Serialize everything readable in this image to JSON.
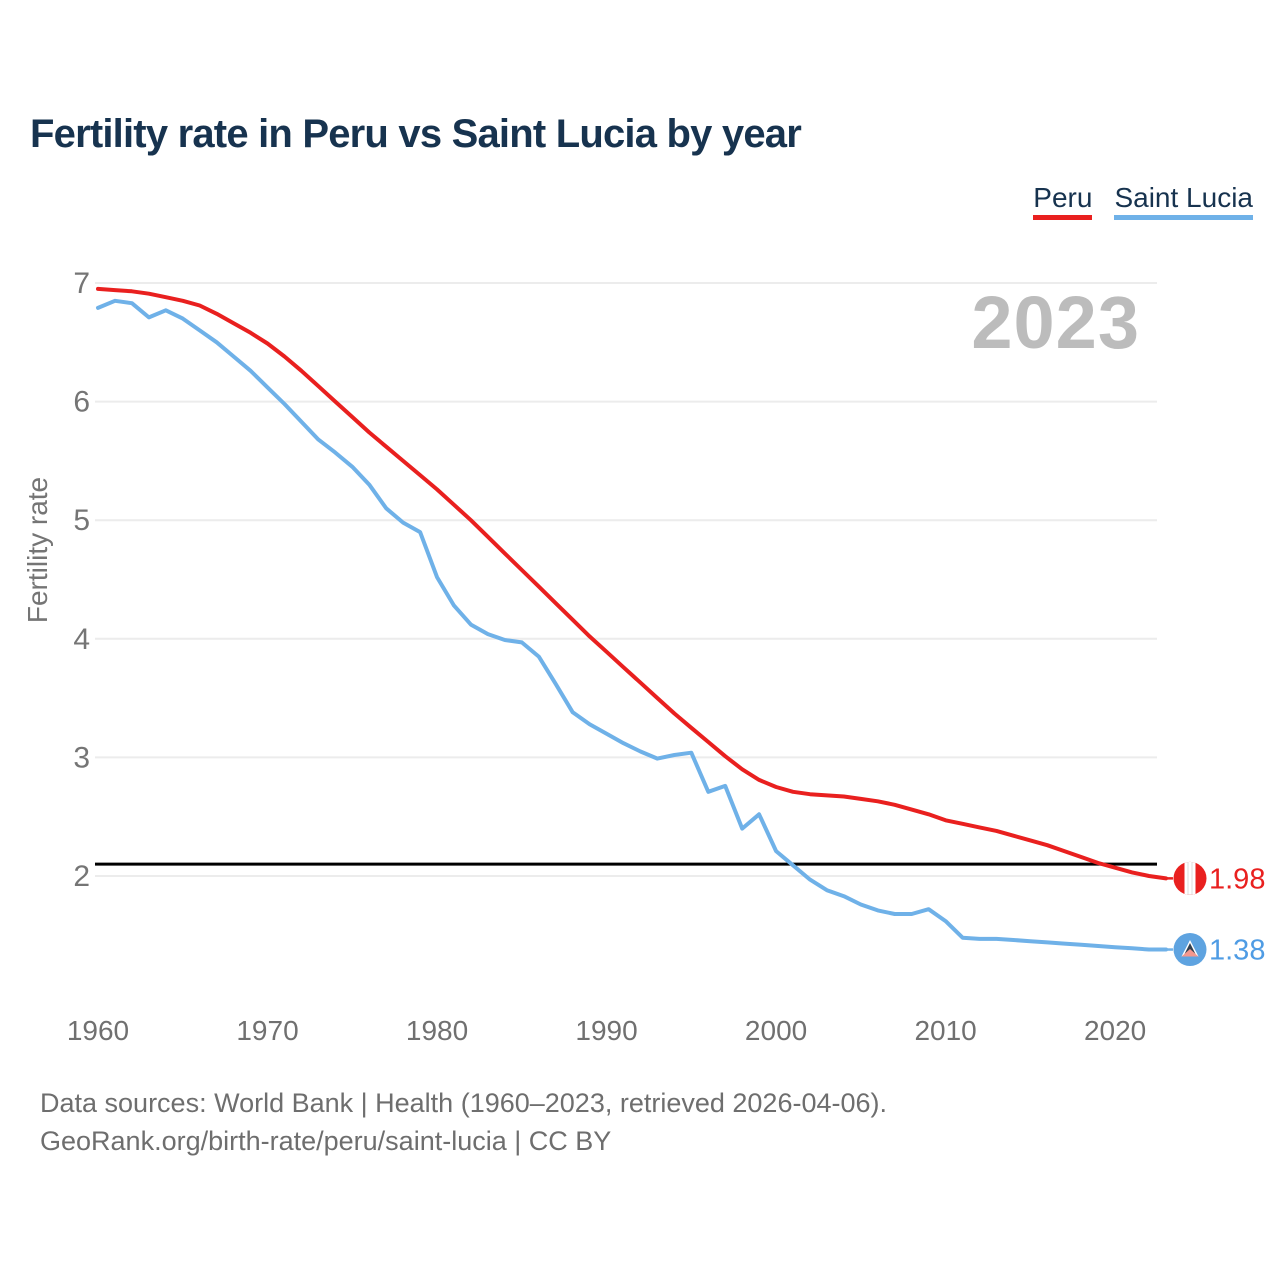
{
  "title": "Fertility rate in Peru vs Saint Lucia by year",
  "watermark": "2023",
  "legend": {
    "items": [
      {
        "label": "Peru",
        "color": "#e9201f"
      },
      {
        "label": "Saint Lucia",
        "color": "#6fb1e8"
      }
    ]
  },
  "y_axis": {
    "title": "Fertility rate",
    "ticks": [
      7,
      6,
      5,
      4,
      3,
      2
    ]
  },
  "x_axis": {
    "ticks": [
      1960,
      1970,
      1980,
      1990,
      2000,
      2010,
      2020
    ]
  },
  "reference_line": {
    "value": 2.1,
    "color": "#000000"
  },
  "end_labels": [
    {
      "series": "Peru",
      "value": "1.98",
      "color": "#e9201f",
      "flag": "peru"
    },
    {
      "series": "Saint Lucia",
      "value": "1.38",
      "color": "#4f9ce4",
      "flag": "saint-lucia"
    }
  ],
  "footer": {
    "line1": "Data sources: World Bank | Health (1960–2023, retrieved 2026-04-06).",
    "line2": "GeoRank.org/birth-rate/peru/saint-lucia | CC BY"
  },
  "chart_data": {
    "type": "line",
    "title": "Fertility rate in Peru vs Saint Lucia by year",
    "xlabel": "",
    "ylabel": "Fertility rate",
    "ylim": [
      1.3,
      7.05
    ],
    "yticks": [
      2,
      3,
      4,
      5,
      6,
      7
    ],
    "xticks": [
      1960,
      1970,
      1980,
      1990,
      2000,
      2010,
      2020
    ],
    "grid": true,
    "legend_position": "top-right",
    "reference_line": 2.1,
    "x": [
      1960,
      1961,
      1962,
      1963,
      1964,
      1965,
      1966,
      1967,
      1968,
      1969,
      1970,
      1971,
      1972,
      1973,
      1974,
      1975,
      1976,
      1977,
      1978,
      1979,
      1980,
      1981,
      1982,
      1983,
      1984,
      1985,
      1986,
      1987,
      1988,
      1989,
      1990,
      1991,
      1992,
      1993,
      1994,
      1995,
      1996,
      1997,
      1998,
      1999,
      2000,
      2001,
      2002,
      2003,
      2004,
      2005,
      2006,
      2007,
      2008,
      2009,
      2010,
      2011,
      2012,
      2013,
      2014,
      2015,
      2016,
      2017,
      2018,
      2019,
      2020,
      2021,
      2022,
      2023
    ],
    "series": [
      {
        "name": "Peru",
        "color": "#e9201f",
        "end_value": 1.98,
        "values": [
          6.95,
          6.94,
          6.93,
          6.91,
          6.88,
          6.85,
          6.81,
          6.74,
          6.66,
          6.58,
          6.49,
          6.38,
          6.26,
          6.13,
          6.0,
          5.87,
          5.74,
          5.62,
          5.5,
          5.38,
          5.26,
          5.13,
          5.0,
          4.86,
          4.72,
          4.58,
          4.44,
          4.3,
          4.16,
          4.02,
          3.89,
          3.76,
          3.63,
          3.5,
          3.37,
          3.25,
          3.13,
          3.01,
          2.9,
          2.81,
          2.75,
          2.71,
          2.69,
          2.68,
          2.67,
          2.65,
          2.63,
          2.6,
          2.56,
          2.52,
          2.47,
          2.44,
          2.41,
          2.38,
          2.34,
          2.3,
          2.26,
          2.21,
          2.16,
          2.11,
          2.07,
          2.03,
          2.0,
          1.98
        ]
      },
      {
        "name": "Saint Lucia",
        "color": "#6fb1e8",
        "end_value": 1.38,
        "values": [
          6.79,
          6.85,
          6.83,
          6.71,
          6.77,
          6.7,
          6.6,
          6.5,
          6.38,
          6.26,
          6.12,
          5.98,
          5.83,
          5.68,
          5.57,
          5.45,
          5.3,
          5.1,
          4.98,
          4.9,
          4.52,
          4.28,
          4.12,
          4.04,
          3.99,
          3.97,
          3.85,
          3.62,
          3.38,
          3.28,
          3.2,
          3.12,
          3.05,
          2.99,
          3.02,
          3.04,
          2.71,
          2.76,
          2.4,
          2.52,
          2.21,
          2.09,
          1.97,
          1.88,
          1.83,
          1.76,
          1.71,
          1.68,
          1.68,
          1.72,
          1.62,
          1.48,
          1.47,
          1.47,
          1.46,
          1.45,
          1.44,
          1.43,
          1.42,
          1.41,
          1.4,
          1.39,
          1.38,
          1.38
        ]
      }
    ]
  }
}
